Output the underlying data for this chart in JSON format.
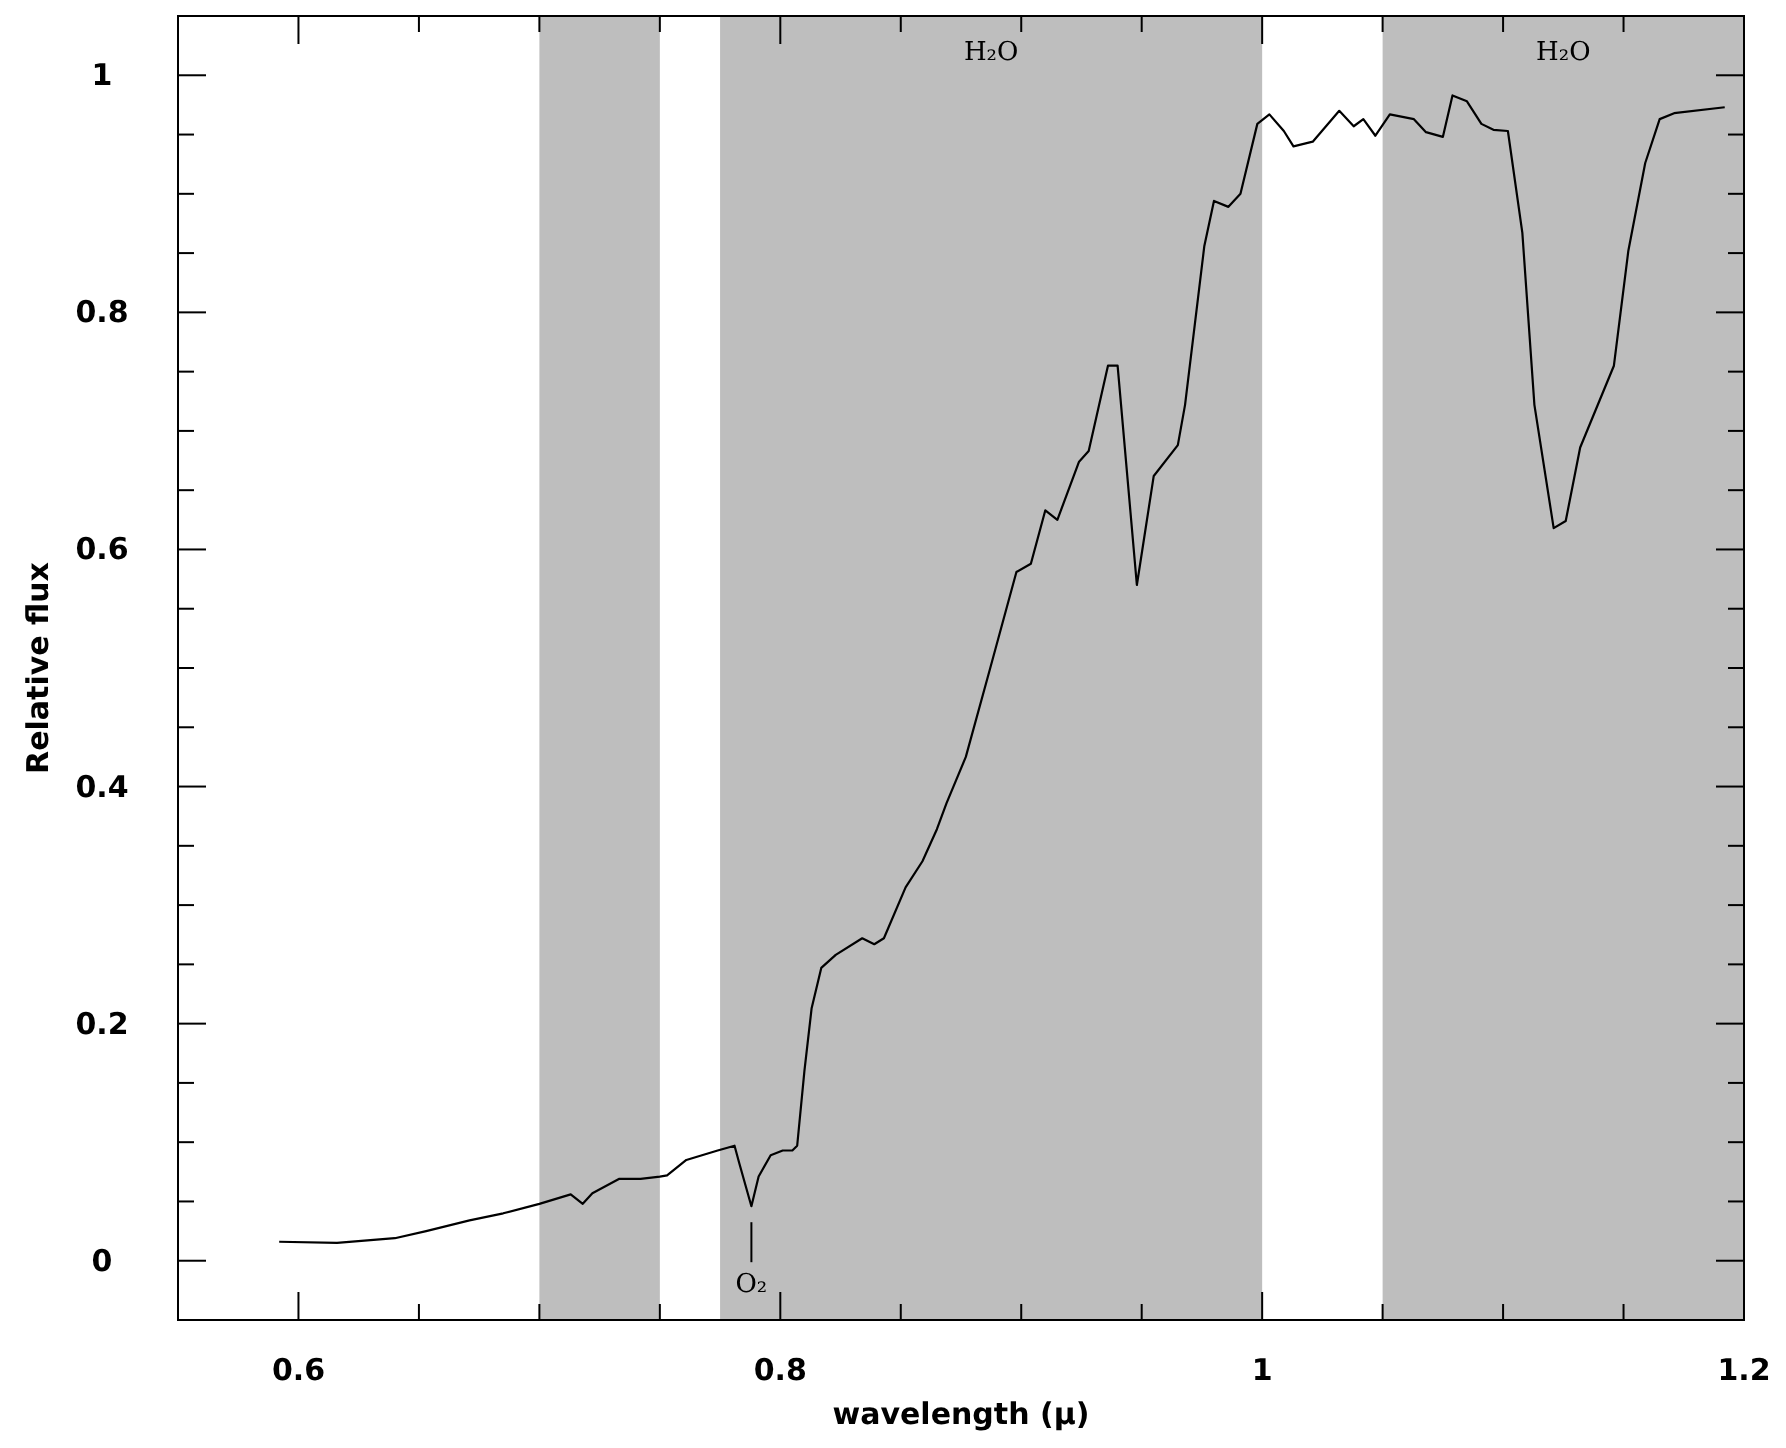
{
  "chart_data": {
    "type": "line",
    "xlabel": "wavelength (μ)",
    "ylabel": "Relative flux",
    "xlim": [
      0.55,
      1.2
    ],
    "ylim": [
      -0.05,
      1.05
    ],
    "xticks": [
      {
        "value": 0.55,
        "label": null
      },
      0.6,
      {
        "value": 0.65,
        "label": null
      },
      {
        "value": 0.7,
        "label": null
      },
      {
        "value": 0.75,
        "label": null
      },
      0.8,
      {
        "value": 0.85,
        "label": null
      },
      {
        "value": 0.9,
        "label": null
      },
      {
        "value": 0.95,
        "label": null
      },
      1,
      {
        "value": 1.05,
        "label": null
      },
      {
        "value": 1.1,
        "label": null
      },
      {
        "value": 1.15,
        "label": null
      },
      1.2
    ],
    "yticks": [
      {
        "value": -0.05,
        "label": null
      },
      0,
      {
        "value": 0.05,
        "label": null
      },
      {
        "value": 0.1,
        "label": null
      },
      {
        "value": 0.15,
        "label": null
      },
      0.2,
      {
        "value": 0.25,
        "label": null
      },
      {
        "value": 0.3,
        "label": null
      },
      {
        "value": 0.35,
        "label": null
      },
      0.4,
      {
        "value": 0.45,
        "label": null
      },
      {
        "value": 0.5,
        "label": null
      },
      {
        "value": 0.55,
        "label": null
      },
      0.6,
      {
        "value": 0.65,
        "label": null
      },
      {
        "value": 0.7,
        "label": null
      },
      {
        "value": 0.75,
        "label": null
      },
      0.8,
      {
        "value": 0.85,
        "label": null
      },
      {
        "value": 0.9,
        "label": null
      },
      {
        "value": 0.95,
        "label": null
      },
      1
    ],
    "grid": false,
    "marker": "none",
    "line_style": "solid",
    "bands": [
      {
        "axis": "x",
        "from": 0.7,
        "to": 0.75,
        "color": "#bebebe"
      },
      {
        "axis": "x",
        "from": 0.775,
        "to": 1.0,
        "color": "#bebebe",
        "label": "H₂O"
      },
      {
        "axis": "x",
        "from": 1.05,
        "to": 1.2,
        "color": "#bebebe",
        "label": "H₂O"
      }
    ],
    "annotations": [
      {
        "text": "O₂",
        "x": 0.788,
        "y": 0.046
      }
    ],
    "series": [
      {
        "color": "#000000",
        "x": [
          0.592,
          0.616,
          0.64,
          0.653,
          0.671,
          0.685,
          0.7,
          0.713,
          0.718,
          0.722,
          0.733,
          0.742,
          0.75,
          0.753,
          0.761,
          0.774,
          0.781,
          0.783,
          0.788,
          0.791,
          0.796,
          0.801,
          0.805,
          0.807,
          0.81,
          0.813,
          0.817,
          0.823,
          0.834,
          0.839,
          0.843,
          0.852,
          0.859,
          0.865,
          0.869,
          0.877,
          0.887,
          0.898,
          0.904,
          0.91,
          0.915,
          0.924,
          0.928,
          0.936,
          0.94,
          0.948,
          0.955,
          0.965,
          0.968,
          0.976,
          0.98,
          0.986,
          0.991,
          0.998,
          1.003,
          1.009,
          1.013,
          1.021,
          1.032,
          1.038,
          1.042,
          1.047,
          1.053,
          1.063,
          1.068,
          1.075,
          1.079,
          1.085,
          1.091,
          1.096,
          1.102,
          1.108,
          1.113,
          1.121,
          1.126,
          1.132,
          1.146,
          1.152,
          1.159,
          1.165,
          1.171,
          1.192
        ],
        "values": [
          0.016,
          0.015,
          0.019,
          0.025,
          0.034,
          0.04,
          0.048,
          0.056,
          0.048,
          0.057,
          0.069,
          0.069,
          0.071,
          0.072,
          0.085,
          0.093,
          0.097,
          0.082,
          0.046,
          0.071,
          0.089,
          0.093,
          0.093,
          0.097,
          0.16,
          0.213,
          0.247,
          0.258,
          0.272,
          0.267,
          0.272,
          0.315,
          0.337,
          0.364,
          0.386,
          0.425,
          0.499,
          0.581,
          0.588,
          0.633,
          0.625,
          0.674,
          0.683,
          0.755,
          0.755,
          0.57,
          0.662,
          0.688,
          0.722,
          0.856,
          0.894,
          0.889,
          0.9,
          0.959,
          0.967,
          0.953,
          0.94,
          0.944,
          0.97,
          0.957,
          0.963,
          0.949,
          0.967,
          0.963,
          0.952,
          0.948,
          0.983,
          0.978,
          0.959,
          0.954,
          0.953,
          0.867,
          0.722,
          0.618,
          0.624,
          0.686,
          0.755,
          0.852,
          0.926,
          0.963,
          0.968,
          0.973
        ]
      }
    ]
  }
}
